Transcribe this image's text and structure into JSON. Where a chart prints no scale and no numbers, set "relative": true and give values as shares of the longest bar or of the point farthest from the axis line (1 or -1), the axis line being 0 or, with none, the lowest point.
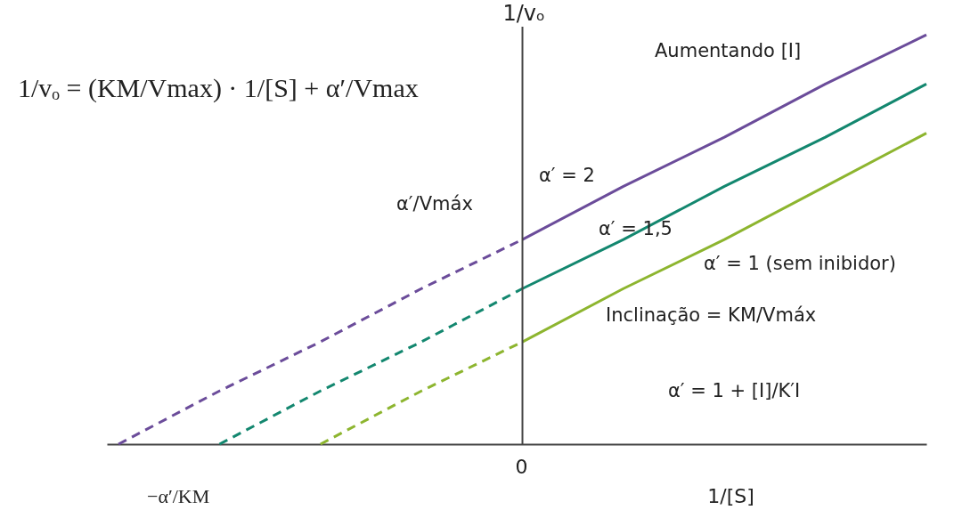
{
  "chart_data": {
    "type": "line",
    "relative": true,
    "xlabel": "1/[S]",
    "ylabel": "1/vₒ",
    "categories": [
      null,
      null,
      null,
      null,
      null,
      null,
      null,
      null,
      null
    ],
    "series": [
      {
        "color": "#6b4c9a",
        "line_style": "dashed",
        "values": [
          0,
          0.13,
          0.25,
          0.38,
          0.5,
          null,
          null,
          null,
          null
        ]
      },
      {
        "color": "#6b4c9a",
        "line_style": "solid",
        "values": [
          null,
          null,
          null,
          null,
          0.5,
          0.63,
          0.75,
          0.88,
          1
        ]
      },
      {
        "color": "#13876f",
        "line_style": "dashed",
        "values": [
          null,
          0,
          0.13,
          0.25,
          0.38,
          null,
          null,
          null,
          null
        ]
      },
      {
        "color": "#13876f",
        "line_style": "solid",
        "values": [
          null,
          null,
          null,
          null,
          0.38,
          0.5,
          0.63,
          0.75,
          0.88
        ]
      },
      {
        "color": "#8db52f",
        "line_style": "dashed",
        "values": [
          null,
          null,
          0,
          0.13,
          0.25,
          null,
          null,
          null,
          null
        ]
      },
      {
        "color": "#8db52f",
        "line_style": "solid",
        "values": [
          null,
          null,
          null,
          null,
          0.25,
          0.38,
          0.5,
          0.63,
          0.76
        ]
      }
    ],
    "annotations": [
      "1/vₒ = (KM/Vmax) · 1/[S] + α′/Vmax",
      "−α′/KM",
      "0",
      "Aumentando [I]",
      "α′ = 2",
      "α′/Vmáx",
      "α′ = 1,5",
      "α′ = 1 (sem inibidor)",
      "Inclinação = KM/Vmáx",
      "α′ = 1 + [I]/K′I"
    ]
  }
}
